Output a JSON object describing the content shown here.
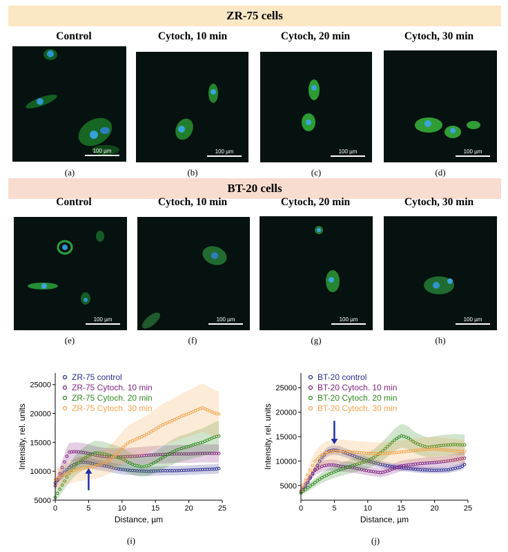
{
  "bands": {
    "top": "ZR-75 cells",
    "bottom": "BT-20 cells"
  },
  "columns": [
    "Control",
    "Cytoch, 10 min",
    "Cytoch, 20 min",
    "Cytoch, 30 min"
  ],
  "scale_bar_label": "100 µm",
  "captions": [
    "(a)",
    "(b)",
    "(c)",
    "(d)",
    "(e)",
    "(f)",
    "(g)",
    "(h)",
    "(i)",
    "(j)"
  ],
  "chart_data": [
    {
      "type": "line",
      "xlabel": "Distance, µm",
      "ylabel": "Intensity, rel. units",
      "xlim": [
        0,
        25
      ],
      "ylim": [
        5000,
        27000
      ],
      "xticks": [
        "0",
        "5",
        "10",
        "15",
        "20",
        "25"
      ],
      "yticks": [
        "5000",
        "10000",
        "15000",
        "20000",
        "25000"
      ],
      "legend_position": "top-left",
      "series": [
        {
          "name": "ZR-75 control",
          "color": "#2b2b8f",
          "x": [
            0,
            1,
            2,
            3,
            4,
            5,
            6,
            7,
            8,
            9,
            10,
            12,
            14,
            16,
            18,
            20,
            22,
            24,
            24.5
          ],
          "y": [
            8000,
            9300,
            10600,
            11300,
            11600,
            11500,
            11200,
            11000,
            10800,
            10500,
            10300,
            10100,
            10000,
            10100,
            10100,
            10200,
            10300,
            10400,
            10500
          ]
        },
        {
          "name": "ZR-75 Cytoch. 10 min",
          "color": "#7e1f7e",
          "x": [
            0,
            1,
            2,
            3,
            4,
            5,
            6,
            7,
            8,
            10,
            12,
            14,
            16,
            18,
            20,
            22,
            24,
            24.5
          ],
          "y": [
            7500,
            10500,
            13300,
            13400,
            13300,
            13100,
            12800,
            12600,
            12500,
            12500,
            12600,
            12800,
            12900,
            13000,
            13000,
            13100,
            13100,
            13100
          ]
        },
        {
          "name": "ZR-75 Cytoch. 20 min",
          "color": "#2f8a1f",
          "x": [
            0,
            1,
            2,
            3,
            4,
            5,
            6,
            7,
            8,
            9,
            10,
            11,
            12,
            13,
            14,
            15,
            16,
            17,
            18,
            19,
            20,
            21,
            22,
            23,
            24,
            24.5
          ],
          "y": [
            5500,
            7500,
            9500,
            11000,
            12000,
            12700,
            13200,
            13100,
            12800,
            12500,
            12200,
            11500,
            11000,
            10800,
            11000,
            11600,
            12300,
            13000,
            13600,
            14000,
            14300,
            14700,
            15000,
            15500,
            16000,
            16100
          ]
        },
        {
          "name": "ZR-75 Cytoch. 30 min",
          "color": "#f3a24a",
          "x": [
            0,
            1,
            2,
            3,
            4,
            5,
            6,
            7,
            8,
            9,
            10,
            11,
            12,
            13,
            14,
            15,
            16,
            17,
            18,
            19,
            20,
            21,
            22,
            23,
            24,
            24.5
          ],
          "y": [
            8500,
            9200,
            9700,
            10200,
            10500,
            10700,
            10900,
            11300,
            11900,
            12800,
            14000,
            15000,
            15500,
            16000,
            16600,
            17300,
            18000,
            18500,
            19000,
            19600,
            20000,
            20500,
            21000,
            20500,
            20000,
            19900
          ]
        }
      ],
      "annotation": "arrow at x = 5"
    },
    {
      "type": "line",
      "xlabel": "Distance, µm",
      "ylabel": "Intensity, rel. units",
      "xlim": [
        0,
        25
      ],
      "ylim": [
        2000,
        28000
      ],
      "xticks": [
        "0",
        "5",
        "10",
        "15",
        "20",
        "25"
      ],
      "yticks": [
        "5000",
        "10000",
        "15000",
        "20000",
        "25000"
      ],
      "legend_position": "top-left",
      "series": [
        {
          "name": "BT-20 control",
          "color": "#2b2b8f",
          "x": [
            0,
            1,
            2,
            3,
            4,
            5,
            6,
            7,
            8,
            9,
            10,
            12,
            14,
            16,
            18,
            20,
            22,
            24,
            24.5
          ],
          "y": [
            3500,
            5500,
            8000,
            10500,
            12000,
            12300,
            12000,
            11500,
            11000,
            10500,
            10000,
            9300,
            8800,
            8500,
            8200,
            8100,
            8200,
            8800,
            9300
          ]
        },
        {
          "name": "BT-20 Cytoch. 10 min",
          "color": "#7e1f7e",
          "x": [
            0,
            1,
            2,
            3,
            4,
            5,
            6,
            7,
            8,
            9,
            10,
            11,
            12,
            13,
            14,
            15,
            16,
            18,
            20,
            22,
            24,
            24.5
          ],
          "y": [
            3800,
            6000,
            8000,
            8900,
            9200,
            9200,
            8900,
            8800,
            8600,
            8300,
            8000,
            7800,
            7600,
            8000,
            8500,
            9000,
            9200,
            9500,
            9700,
            10000,
            10500,
            10600
          ]
        },
        {
          "name": "BT-20 Cytoch. 20 min",
          "color": "#2f8a1f",
          "x": [
            0,
            1,
            2,
            3,
            4,
            5,
            6,
            7,
            8,
            9,
            10,
            11,
            12,
            13,
            14,
            15,
            16,
            17,
            18,
            19,
            20,
            21,
            22,
            23,
            24,
            24.5
          ],
          "y": [
            3500,
            4500,
            5500,
            6500,
            7200,
            7800,
            8300,
            8700,
            9200,
            9600,
            10100,
            10800,
            11800,
            13000,
            14300,
            15200,
            14800,
            13800,
            13200,
            12800,
            13000,
            13200,
            13300,
            13400,
            13300,
            13300
          ]
        },
        {
          "name": "BT-20 Cytoch. 30 min",
          "color": "#f3a24a",
          "x": [
            0,
            1,
            2,
            3,
            4,
            5,
            6,
            8,
            10,
            12,
            14,
            16,
            18,
            20,
            22,
            24,
            24.5
          ],
          "y": [
            4000,
            7000,
            9800,
            11200,
            11800,
            12000,
            12000,
            11800,
            11600,
            11500,
            11700,
            12000,
            12300,
            12500,
            12200,
            12000,
            12000
          ]
        }
      ],
      "annotation": "arrow at x = 5"
    }
  ]
}
